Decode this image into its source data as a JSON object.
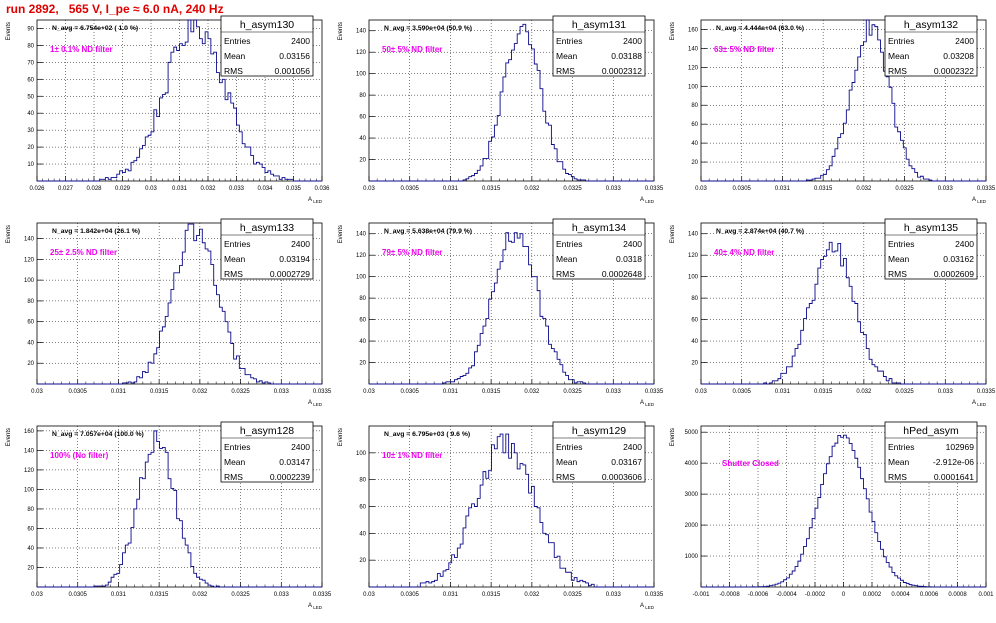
{
  "page_title": "run 2892,   565 V, I_pe ≈ 6.0 nA, 240 Hz",
  "colors": {
    "histogram": "#0a0a8c",
    "annotation": "#ee00ee",
    "title": "#e00000",
    "axis": "#000000",
    "grid": "#000000"
  },
  "chart_data": [
    {
      "type": "histogram",
      "grid": true,
      "name": "h_asym130",
      "label": "1± 0.1% ND filter",
      "navg": "N_avg = 6.754e+02 ( 1.0 %)",
      "stats": [
        [
          "Entries",
          "2400"
        ],
        [
          "Mean",
          "0.03156"
        ],
        [
          "RMS",
          "0.001056"
        ]
      ],
      "xlabel": "A_LED",
      "ylabel": "Events",
      "xlim": [
        0.026,
        0.036
      ],
      "ylim": [
        0,
        95
      ],
      "xticks": [
        "0.026",
        "0.027",
        "0.028",
        "0.029",
        "0.03",
        "0.031",
        "0.032",
        "0.033",
        "0.034",
        "0.035",
        "0.036"
      ],
      "xtick_values": [
        0.026,
        0.027,
        0.028,
        0.029,
        0.03,
        0.031,
        0.032,
        0.033,
        0.034,
        0.035,
        0.036
      ],
      "yticks": [
        10,
        20,
        30,
        40,
        50,
        60,
        70,
        80,
        90
      ],
      "mean": 0.03156,
      "sigma": 0.001056,
      "peak": 92
    },
    {
      "type": "histogram",
      "grid": true,
      "name": "h_asym131",
      "label": "50± 5% ND filter",
      "navg": "N_avg = 3.590e+04 (50.9 %)",
      "stats": [
        [
          "Entries",
          "2400"
        ],
        [
          "Mean",
          "0.03188"
        ],
        [
          "RMS",
          "0.0002312"
        ]
      ],
      "xlabel": "A_LED",
      "ylabel": "Events",
      "xlim": [
        0.03,
        0.0335
      ],
      "ylim": [
        0,
        150
      ],
      "xticks": [
        "0.03",
        "0.0305",
        "0.031",
        "0.0315",
        "0.032",
        "0.0325",
        "0.033",
        "0.0335"
      ],
      "xtick_values": [
        0.03,
        0.0305,
        0.031,
        0.0315,
        0.032,
        0.0325,
        0.033,
        0.0335
      ],
      "yticks": [
        20,
        40,
        60,
        80,
        100,
        120,
        140
      ],
      "mean": 0.03188,
      "sigma": 0.0002312,
      "peak": 141
    },
    {
      "type": "histogram",
      "grid": true,
      "name": "h_asym132",
      "label": "63± 5% ND filter",
      "navg": "N_avg = 4.444e+04 (63.0 %)",
      "stats": [
        [
          "Entries",
          "2400"
        ],
        [
          "Mean",
          "0.03208"
        ],
        [
          "RMS",
          "0.0002322"
        ]
      ],
      "xlabel": "A_LED",
      "ylabel": "Events",
      "xlim": [
        0.03,
        0.0335
      ],
      "ylim": [
        0,
        170
      ],
      "xticks": [
        "0.03",
        "0.0305",
        "0.031",
        "0.0315",
        "0.032",
        "0.0325",
        "0.033",
        "0.0335"
      ],
      "xtick_values": [
        0.03,
        0.0305,
        0.031,
        0.0315,
        0.032,
        0.0325,
        0.033,
        0.0335
      ],
      "yticks": [
        20,
        40,
        60,
        80,
        100,
        120,
        140,
        160
      ],
      "mean": 0.03208,
      "sigma": 0.0002322,
      "peak": 160
    },
    {
      "type": "histogram",
      "grid": true,
      "name": "h_asym133",
      "label": "25± 2.5% ND filter",
      "navg": "N_avg = 1.842e+04 (26.1 %)",
      "stats": [
        [
          "Entries",
          "2400"
        ],
        [
          "Mean",
          "0.03194"
        ],
        [
          "RMS",
          "0.0002729"
        ]
      ],
      "xlabel": "A_LED",
      "ylabel": "Events",
      "xlim": [
        0.03,
        0.0335
      ],
      "ylim": [
        0,
        155
      ],
      "xticks": [
        "0.03",
        "0.0305",
        "0.031",
        "0.0315",
        "0.032",
        "0.0325",
        "0.033",
        "0.0335"
      ],
      "xtick_values": [
        0.03,
        0.0305,
        0.031,
        0.0315,
        0.032,
        0.0325,
        0.033,
        0.0335
      ],
      "yticks": [
        20,
        40,
        60,
        80,
        100,
        120,
        140
      ],
      "mean": 0.03194,
      "sigma": 0.0002729,
      "peak": 148
    },
    {
      "type": "histogram",
      "grid": true,
      "name": "h_asym134",
      "label": "79± 5% ND filter",
      "navg": "N_avg = 5.638e+04 (79.9 %)",
      "stats": [
        [
          "Entries",
          "2400"
        ],
        [
          "Mean",
          "0.0318"
        ],
        [
          "RMS",
          "0.0002648"
        ]
      ],
      "xlabel": "A_LED",
      "ylabel": "Events",
      "xlim": [
        0.03,
        0.0335
      ],
      "ylim": [
        0,
        150
      ],
      "xticks": [
        "0.03",
        "0.0305",
        "0.031",
        "0.0315",
        "0.032",
        "0.0325",
        "0.033",
        "0.0335"
      ],
      "xtick_values": [
        0.03,
        0.0305,
        0.031,
        0.0315,
        0.032,
        0.0325,
        0.033,
        0.0335
      ],
      "yticks": [
        20,
        40,
        60,
        80,
        100,
        120,
        140
      ],
      "mean": 0.0318,
      "sigma": 0.0002648,
      "peak": 143
    },
    {
      "type": "histogram",
      "grid": true,
      "name": "h_asym135",
      "label": "40± 4% ND filter",
      "navg": "N_avg = 2.874e+04 (40.7 %)",
      "stats": [
        [
          "Entries",
          "2400"
        ],
        [
          "Mean",
          "0.03162"
        ],
        [
          "RMS",
          "0.0002609"
        ]
      ],
      "xlabel": "A_LED",
      "ylabel": "Events",
      "xlim": [
        0.03,
        0.0335
      ],
      "ylim": [
        0,
        150
      ],
      "xticks": [
        "0.03",
        "0.0305",
        "0.031",
        "0.0315",
        "0.032",
        "0.0325",
        "0.033",
        "0.0335"
      ],
      "xtick_values": [
        0.03,
        0.0305,
        0.031,
        0.0315,
        0.032,
        0.0325,
        0.033,
        0.0335
      ],
      "yticks": [
        20,
        40,
        60,
        80,
        100,
        120,
        140
      ],
      "mean": 0.03162,
      "sigma": 0.0002609,
      "peak": 128
    },
    {
      "type": "histogram",
      "grid": true,
      "name": "h_asym128",
      "label": "100% (No filter)",
      "navg": "N_avg = 7.057e+04 (100.0 %)",
      "stats": [
        [
          "Entries",
          "2400"
        ],
        [
          "Mean",
          "0.03147"
        ],
        [
          "RMS",
          "0.0002239"
        ]
      ],
      "xlabel": "A_LED",
      "ylabel": "Events",
      "xlim": [
        0.03,
        0.0335
      ],
      "ylim": [
        0,
        165
      ],
      "xticks": [
        "0.03",
        "0.0305",
        "0.031",
        "0.0315",
        "0.032",
        "0.0325",
        "0.033",
        "0.0335"
      ],
      "xtick_values": [
        0.03,
        0.0305,
        0.031,
        0.0315,
        0.032,
        0.0325,
        0.033,
        0.0335
      ],
      "yticks": [
        20,
        40,
        60,
        80,
        100,
        120,
        140,
        160
      ],
      "mean": 0.03147,
      "sigma": 0.0002239,
      "peak": 152
    },
    {
      "type": "histogram",
      "grid": true,
      "name": "h_asym129",
      "label": "10± 1% ND filter",
      "navg": "N_avg = 6.795e+03 ( 9.6 %)",
      "stats": [
        [
          "Entries",
          "2400"
        ],
        [
          "Mean",
          "0.03167"
        ],
        [
          "RMS",
          "0.0003606"
        ]
      ],
      "xlabel": "A_LED",
      "ylabel": "Events",
      "xlim": [
        0.03,
        0.0335
      ],
      "ylim": [
        0,
        120
      ],
      "xticks": [
        "0.03",
        "0.0305",
        "0.031",
        "0.0315",
        "0.032",
        "0.0325",
        "0.033",
        "0.0335"
      ],
      "xtick_values": [
        0.03,
        0.0305,
        0.031,
        0.0315,
        0.032,
        0.0325,
        0.033,
        0.0335
      ],
      "yticks": [
        20,
        40,
        60,
        80,
        100
      ],
      "mean": 0.03167,
      "sigma": 0.0003606,
      "peak": 106
    },
    {
      "type": "histogram",
      "grid": true,
      "name": "hPed_asym",
      "label": "Shutter Closed",
      "navg": "",
      "stats": [
        [
          "Entries",
          "102969"
        ],
        [
          "Mean",
          "-2.912e-06"
        ],
        [
          "RMS",
          "0.0001641"
        ]
      ],
      "xlabel": "",
      "ylabel": "Events",
      "xlim": [
        -0.001,
        0.001
      ],
      "ylim": [
        0,
        5200
      ],
      "xticks": [
        "-0.001",
        "-0.0008",
        "-0.0006",
        "-0.0004",
        "-0.0002",
        "0",
        "0.0002",
        "0.0004",
        "0.0006",
        "0.0008",
        "0.001"
      ],
      "xtick_values": [
        -0.001,
        -0.0008,
        -0.0006,
        -0.0004,
        -0.0002,
        0,
        0.0002,
        0.0004,
        0.0006,
        0.0008,
        0.001
      ],
      "yticks": [
        1000,
        2000,
        3000,
        4000,
        5000
      ],
      "mean": -2.912e-06,
      "sigma": 0.0001641,
      "peak": 4900
    }
  ]
}
